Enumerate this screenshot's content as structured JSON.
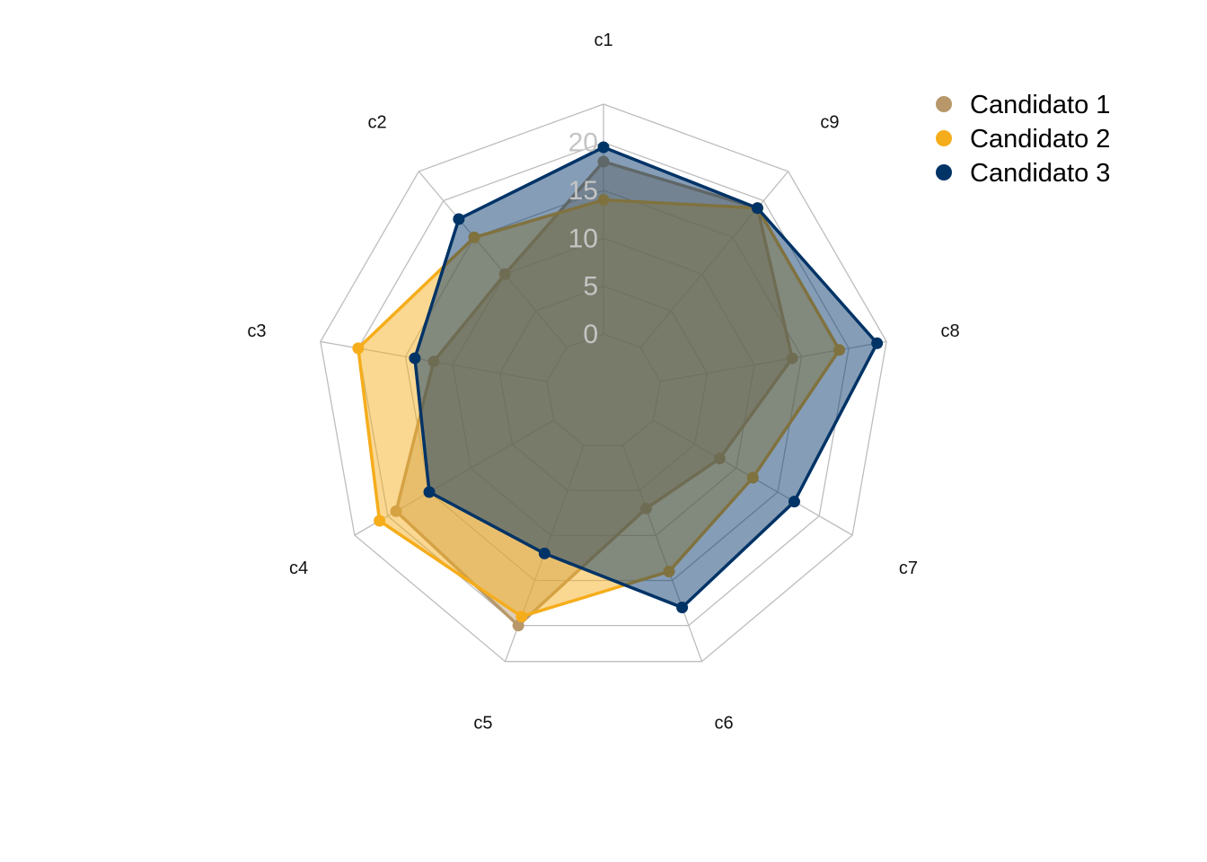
{
  "chart_data": {
    "type": "radar",
    "title": "",
    "categories": [
      "c1",
      "c2",
      "c3",
      "c4",
      "c5",
      "c6",
      "c7",
      "c8",
      "c9"
    ],
    "rlim": [
      0,
      20
    ],
    "ticks": [
      "0",
      "5",
      "10",
      "15",
      "20"
    ],
    "grid": true,
    "legend_position": "top-right",
    "series": [
      {
        "name": "Candidato 1",
        "color": "#b8986a",
        "values": [
          18,
          10,
          12,
          19,
          20,
          7,
          8,
          14,
          19
        ]
      },
      {
        "name": "Candidato 2",
        "color": "#f5ad1b",
        "values": [
          14,
          15,
          20,
          21,
          19,
          14,
          12,
          19,
          19
        ]
      },
      {
        "name": "Candidato 3",
        "color": "#003366",
        "values": [
          19.5,
          17.5,
          14,
          15,
          12,
          18,
          17,
          23,
          19
        ]
      }
    ]
  }
}
